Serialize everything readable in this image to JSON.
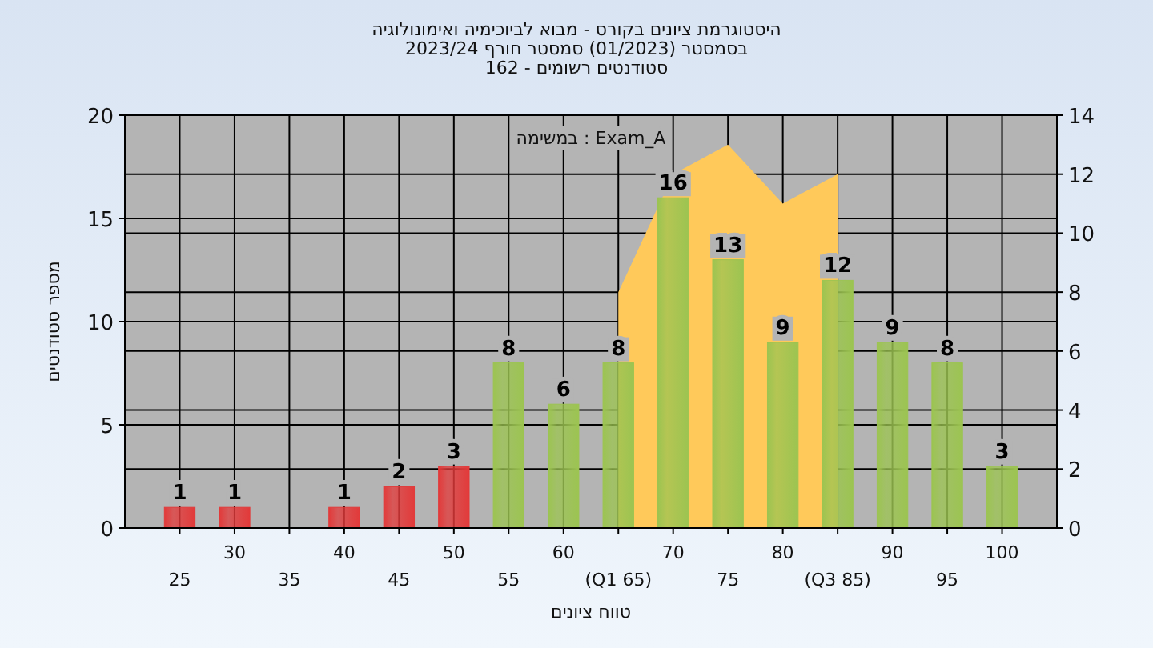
{
  "chart_data": {
    "type": "bar",
    "title": "היסטוגרמת ציונים בקורס - מבוא לביוכימיה ואימונולוגיה",
    "subtitle": "בסמסטר  (01/2023)  סמסטר חורף  2023/24\nסטודנטים רשומים - 162",
    "xlabel": "טווח ציונים",
    "ylabel": "מספר סטודנטים",
    "annotations": [
      "במשימה : Exam_A"
    ],
    "categories": [
      "25",
      "30",
      "35",
      "40",
      "45",
      "50",
      "55",
      "60",
      "(Q1 65)",
      "70",
      "75",
      "80",
      "(Q3 85)",
      "90",
      "95",
      "100"
    ],
    "series": [
      {
        "type": "area",
        "axis": "y2",
        "color": "#ffc95a",
        "values": [
          null,
          null,
          null,
          null,
          null,
          null,
          null,
          null,
          8,
          12,
          13,
          11,
          12,
          null,
          null,
          null
        ]
      },
      {
        "colors": [
          "#e23a3a",
          "#e23a3a",
          "#e23a3a",
          "#e23a3a",
          "#e23a3a",
          "#e23a3a",
          "#9cc451",
          "#9cc451",
          "#9cc451",
          "#9cc451",
          "#9cc451",
          "#9cc451",
          "#9cc451",
          "#9cc451",
          "#9cc451",
          "#9cc451"
        ],
        "values": [
          1,
          1,
          0,
          1,
          2,
          3,
          8,
          6,
          8,
          16,
          13,
          9,
          12,
          9,
          8,
          3
        ],
        "value_labels": [
          "1",
          "1",
          null,
          "1",
          "2",
          "3",
          "8",
          "6",
          "8",
          "16",
          "13",
          "9",
          "12",
          "9",
          "8",
          "3"
        ]
      }
    ],
    "ylim": [
      0,
      20
    ],
    "yticks": [
      0,
      5,
      10,
      15,
      20
    ],
    "y2lim": [
      0,
      14
    ],
    "y2ticks": [
      0,
      2,
      4,
      6,
      8,
      10,
      12,
      14
    ],
    "grid": true
  }
}
